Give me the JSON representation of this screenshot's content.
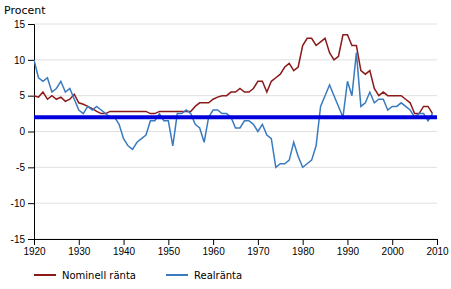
{
  "chart_data": {
    "type": "line",
    "ylabel": "Procent",
    "x": [
      1920,
      1921,
      1922,
      1923,
      1924,
      1925,
      1926,
      1927,
      1928,
      1929,
      1930,
      1931,
      1932,
      1933,
      1934,
      1935,
      1936,
      1937,
      1938,
      1939,
      1940,
      1941,
      1942,
      1943,
      1944,
      1945,
      1946,
      1947,
      1948,
      1949,
      1950,
      1951,
      1952,
      1953,
      1954,
      1955,
      1956,
      1957,
      1958,
      1959,
      1960,
      1961,
      1962,
      1963,
      1964,
      1965,
      1966,
      1967,
      1968,
      1969,
      1970,
      1971,
      1972,
      1973,
      1974,
      1975,
      1976,
      1977,
      1978,
      1979,
      1980,
      1981,
      1982,
      1983,
      1984,
      1985,
      1986,
      1987,
      1988,
      1989,
      1990,
      1991,
      1992,
      1993,
      1994,
      1995,
      1996,
      1997,
      1998,
      1999,
      2000,
      2001,
      2002,
      2003,
      2004,
      2005,
      2006,
      2007,
      2008,
      2009
    ],
    "series": [
      {
        "name": "Nominell ränta",
        "color": "#8b1a1a",
        "values": [
          5.0,
          4.8,
          5.5,
          4.5,
          5.0,
          4.5,
          4.8,
          4.2,
          4.5,
          5.2,
          4.0,
          3.8,
          3.5,
          3.2,
          2.8,
          2.5,
          2.5,
          2.8,
          2.8,
          2.8,
          2.8,
          2.8,
          2.8,
          2.8,
          2.8,
          2.8,
          2.5,
          2.5,
          2.8,
          2.8,
          2.8,
          2.8,
          2.8,
          2.8,
          2.8,
          2.8,
          3.5,
          4.0,
          4.0,
          4.0,
          4.5,
          4.8,
          5.0,
          5.0,
          5.5,
          5.5,
          6.0,
          5.5,
          5.5,
          6.0,
          7.0,
          7.0,
          5.5,
          7.0,
          7.5,
          8.0,
          9.0,
          9.5,
          8.5,
          9.0,
          12.0,
          13.0,
          13.0,
          12.0,
          12.5,
          13.0,
          11.0,
          10.0,
          10.5,
          13.5,
          13.5,
          12.0,
          12.0,
          8.5,
          8.0,
          8.5,
          6.0,
          5.0,
          5.5,
          5.0,
          5.0,
          5.0,
          5.0,
          4.5,
          4.0,
          2.5,
          2.5,
          3.5,
          3.5,
          2.5
        ]
      },
      {
        "name": "Realränta",
        "color": "#3a7abf",
        "values": [
          10.0,
          7.5,
          7.0,
          7.5,
          5.5,
          6.0,
          7.0,
          5.5,
          6.0,
          4.5,
          3.0,
          2.5,
          3.5,
          3.0,
          3.5,
          3.0,
          2.5,
          2.0,
          2.0,
          1.0,
          -1.0,
          -2.0,
          -2.5,
          -1.5,
          -1.0,
          -0.5,
          1.5,
          1.5,
          2.5,
          1.5,
          1.5,
          -2.0,
          2.5,
          2.5,
          3.0,
          2.5,
          1.0,
          0.5,
          -1.5,
          2.0,
          3.0,
          3.0,
          2.5,
          2.5,
          2.0,
          0.5,
          0.5,
          1.5,
          1.5,
          1.0,
          0.0,
          1.0,
          -0.5,
          -1.0,
          -5.0,
          -4.5,
          -4.5,
          -4.0,
          -1.5,
          -3.5,
          -5.0,
          -4.5,
          -4.0,
          -2.0,
          3.5,
          5.0,
          6.5,
          5.0,
          3.5,
          2.0,
          7.0,
          5.0,
          11.0,
          3.5,
          4.0,
          5.5,
          4.0,
          4.5,
          4.5,
          3.0,
          3.5,
          3.5,
          4.0,
          3.5,
          3.0,
          2.0,
          2.5,
          2.5,
          1.5,
          2.5
        ]
      }
    ],
    "hline": {
      "y": 2,
      "color": "#0000dd"
    },
    "xlim": [
      1920,
      2010
    ],
    "ylim": [
      -15,
      15
    ],
    "xticks": [
      1920,
      1930,
      1940,
      1950,
      1960,
      1970,
      1980,
      1990,
      2000,
      2010
    ],
    "yticks": [
      -15,
      -10,
      -5,
      0,
      5,
      10,
      15
    ],
    "grid": true,
    "legend": "bottom"
  }
}
